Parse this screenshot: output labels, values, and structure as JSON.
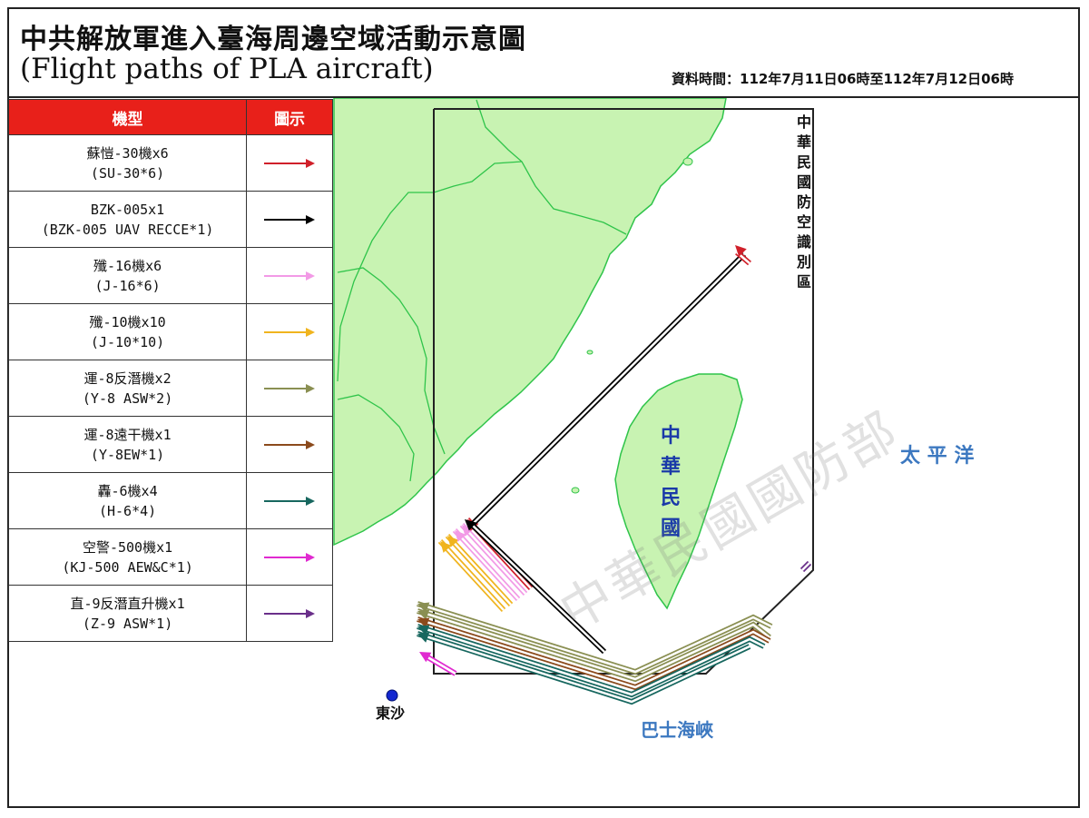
{
  "header": {
    "title_zh": "中共解放軍進入臺海周邊空域活動示意圖",
    "title_en": "(Flight paths of PLA aircraft)",
    "data_time": "資料時間：112年7月11日06時至112年7月12日06時"
  },
  "legend": {
    "col_type": "機型",
    "col_symbol": "圖示",
    "rows": [
      {
        "zh": "蘇愷-30機x6",
        "en": "(SU-30*6)",
        "color": "#d0202a"
      },
      {
        "zh": "BZK-005x1",
        "en": "(BZK-005 UAV RECCE*1)",
        "color": "#000000"
      },
      {
        "zh": "殲-16機x6",
        "en": "(J-16*6)",
        "color": "#f29ae6"
      },
      {
        "zh": "殲-10機x10",
        "en": "(J-10*10)",
        "color": "#f0b41e"
      },
      {
        "zh": "運-8反潛機x2",
        "en": "(Y-8 ASW*2)",
        "color": "#8a8f52"
      },
      {
        "zh": "運-8遠干機x1",
        "en": "(Y-8EW*1)",
        "color": "#8b4a1c"
      },
      {
        "zh": "轟-6機x4",
        "en": "(H-6*4)",
        "color": "#17675f"
      },
      {
        "zh": "空警-500機x1",
        "en": "(KJ-500 AEW&C*1)",
        "color": "#e02ad0"
      },
      {
        "zh": "直-9反潛直升機x1",
        "en": "(Z-9 ASW*1)",
        "color": "#6a2f8a"
      }
    ]
  },
  "map": {
    "adiz_label": "中華民國防空識別區",
    "taiwan_label": "中華民國",
    "pacific_label": "太 平 洋",
    "bashi_label": "巴士海峽",
    "dongsha_label": "東沙",
    "watermark": "中華民國國防部",
    "land_color": "#c8f3b2",
    "coast_color": "#2fc44a",
    "label_color": "#3c78c0"
  }
}
